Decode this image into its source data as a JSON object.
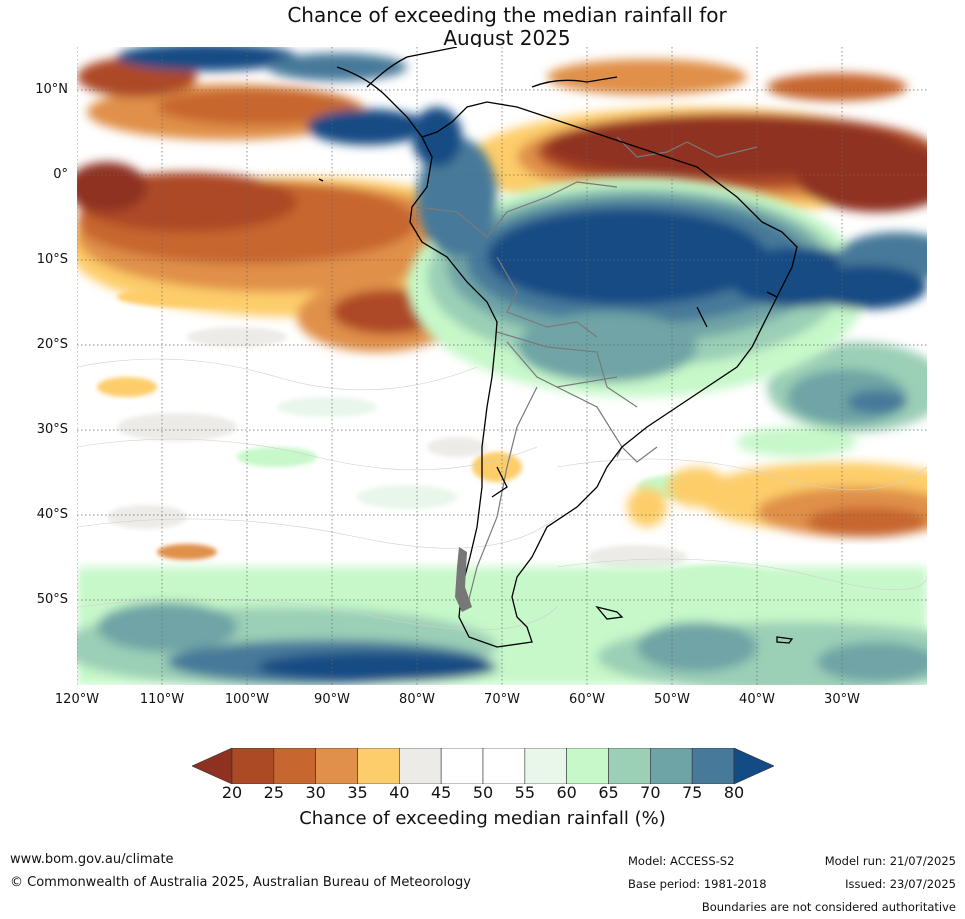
{
  "title": {
    "line1": "Chance of exceeding the median rainfall for",
    "line2": "August 2025"
  },
  "map": {
    "lat_labels": [
      "10°N",
      "0°",
      "10°S",
      "20°S",
      "30°S",
      "40°S",
      "50°S"
    ],
    "lon_labels": [
      "120°W",
      "110°W",
      "100°W",
      "90°W",
      "80°W",
      "70°W",
      "60°W",
      "50°W",
      "40°W",
      "30°W"
    ],
    "regions": [
      {
        "name": "northern South America / Caribbean",
        "category": "20-25",
        "color": "#8f3120"
      },
      {
        "name": "Amazon basin",
        "category": ">80",
        "color": "#134c84"
      },
      {
        "name": "eastern Pacific near equator",
        "category": "25-35",
        "color": "#c7662f"
      },
      {
        "name": "southern ocean south of 50S",
        "category": "70-80",
        "color": "#47799a"
      },
      {
        "name": "South Atlantic 35-45S",
        "category": "25-40",
        "color": "#e0904a"
      }
    ]
  },
  "colorbar": {
    "ticks": [
      "20",
      "25",
      "30",
      "35",
      "40",
      "45",
      "50",
      "55",
      "60",
      "65",
      "70",
      "75",
      "80"
    ],
    "colors": [
      "#8f3120",
      "#ad4a26",
      "#c7662f",
      "#e0904a",
      "#fdcd6b",
      "#ecebe7",
      "#ffffff",
      "#ffffff",
      "#e9f6ea",
      "#c6f8c9",
      "#9bcfb6",
      "#6fa4a6",
      "#47799a",
      "#134c84"
    ],
    "label": "Chance of exceeding median rainfall (%)"
  },
  "footer": {
    "website": "www.bom.gov.au/climate",
    "copyright": "© Commonwealth of Australia 2025, Australian Bureau of Meteorology",
    "model": "Model: ACCESS-S2",
    "base_period": "Base period: 1981-2018",
    "model_run": "Model run: 21/07/2025",
    "issued": "Issued: 23/07/2025",
    "disclaimer": "Boundaries are not considered authoritative"
  }
}
